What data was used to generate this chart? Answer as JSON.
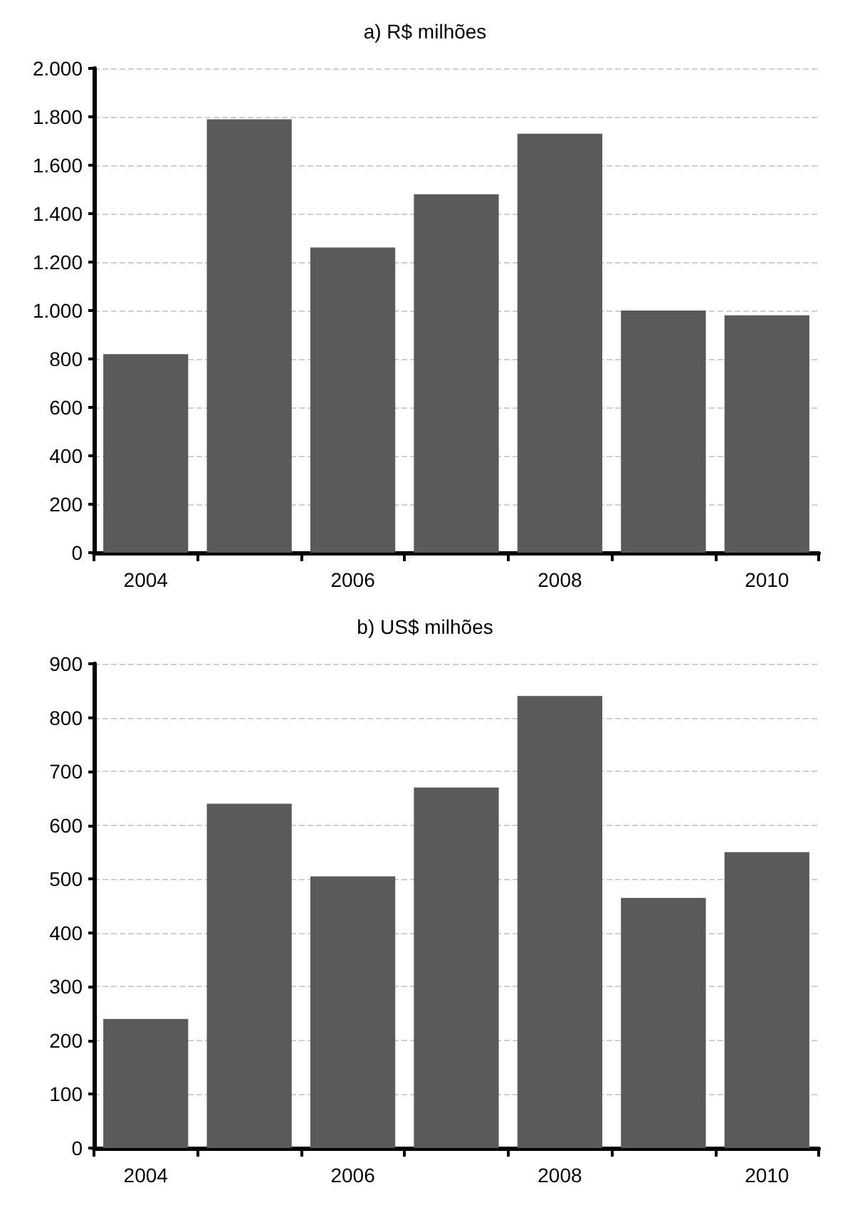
{
  "chart_data": [
    {
      "type": "bar",
      "title": "a) R$ milhões",
      "categories": [
        "2004",
        null,
        "2006",
        null,
        "2008",
        null,
        "2010"
      ],
      "series": [
        {
          "color": "#5a5a5a",
          "values": [
            820,
            1790,
            1260,
            1480,
            1730,
            1000,
            980
          ]
        }
      ],
      "ylim": [
        0,
        2000
      ],
      "yticks": [
        {
          "value": 0,
          "label": "0"
        },
        {
          "value": 200,
          "label": "200"
        },
        {
          "value": 400,
          "label": "400"
        },
        {
          "value": 600,
          "label": "600"
        },
        {
          "value": 800,
          "label": "800"
        },
        {
          "value": 1000,
          "label": "1.000"
        },
        {
          "value": 1200,
          "label": "1.200"
        },
        {
          "value": 1400,
          "label": "1.400"
        },
        {
          "value": 1600,
          "label": "1.600"
        },
        {
          "value": 1800,
          "label": "1.800"
        },
        {
          "value": 2000,
          "label": "2.000"
        }
      ],
      "grid": "y"
    },
    {
      "type": "bar",
      "title": "b) US$ milhões",
      "categories": [
        "2004",
        null,
        "2006",
        null,
        "2008",
        null,
        "2010"
      ],
      "series": [
        {
          "color": "#5a5a5a",
          "values": [
            240,
            640,
            505,
            670,
            840,
            465,
            550
          ]
        }
      ],
      "ylim": [
        0,
        900
      ],
      "yticks": [
        0,
        100,
        200,
        300,
        400,
        500,
        600,
        700,
        800,
        900
      ],
      "grid": "y"
    }
  ]
}
